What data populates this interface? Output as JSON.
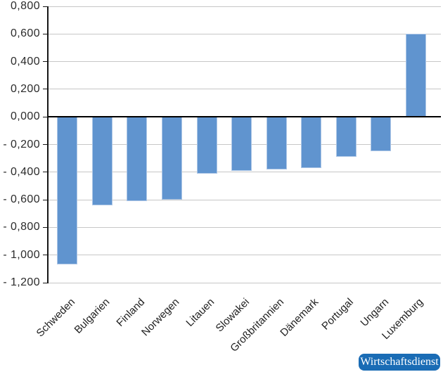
{
  "chart_data": {
    "type": "bar",
    "title": "",
    "xlabel": "",
    "ylabel": "",
    "categories": [
      "Schweden",
      "Bulgarien",
      "Finland",
      "Norwegen",
      "Litauen",
      "Slowakei",
      "Großbritannien",
      "Dänemark",
      "Portugal",
      "Ungarn",
      "Luxemburg"
    ],
    "values": [
      -1.07,
      -0.64,
      -0.61,
      -0.6,
      -0.41,
      -0.39,
      -0.38,
      -0.37,
      -0.29,
      -0.25,
      0.6
    ],
    "ylim": [
      -1.2,
      0.8
    ],
    "grid": true,
    "legend": false,
    "yticks": [
      {
        "value": 0.8,
        "label": "0,800"
      },
      {
        "value": 0.6,
        "label": "0,600"
      },
      {
        "value": 0.4,
        "label": "0,400"
      },
      {
        "value": 0.2,
        "label": "0,200"
      },
      {
        "value": 0.0,
        "label": "0,000"
      },
      {
        "value": -0.2,
        "label": "- 0,200"
      },
      {
        "value": -0.4,
        "label": "- 0,400"
      },
      {
        "value": -0.6,
        "label": "- 0,600"
      },
      {
        "value": -0.8,
        "label": "- 0,800"
      },
      {
        "value": -1.0,
        "label": "- 1,000"
      },
      {
        "value": -1.2,
        "label": "- 1,200"
      }
    ],
    "colors": {
      "bar_fill": "#6094cf",
      "bar_border": "#aec7e6",
      "gridline": "#c7c7c7",
      "zero_line": "#000000",
      "axis_line": "#161616"
    }
  },
  "branding": {
    "badge_label": "Wirtschaftsdienst",
    "badge_color": "#1a6cb5",
    "badge_text_color": "#ffffff"
  }
}
